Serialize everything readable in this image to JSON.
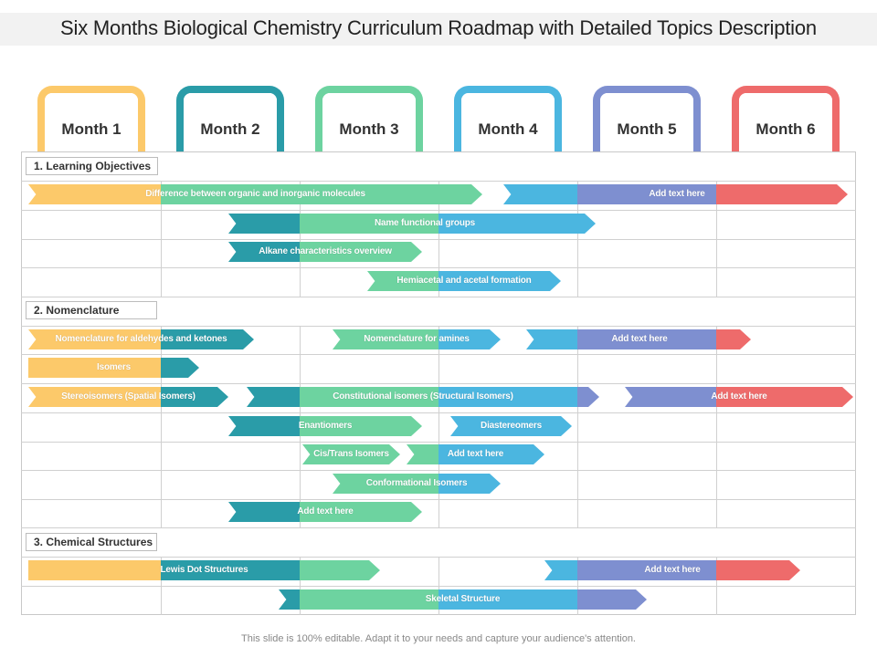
{
  "header": {
    "title": "Six Months Biological Chemistry Curriculum Roadmap with Detailed Topics Description"
  },
  "colors": {
    "yellow": "#FCC96A",
    "teal": "#2A9CA8",
    "green": "#6DD3A0",
    "blue": "#4BB6E0",
    "purple": "#7E8FD0",
    "red": "#EE6B6B"
  },
  "months": [
    {
      "label": "Month 1",
      "color": "#FCC96A"
    },
    {
      "label": "Month 2",
      "color": "#2A9CA8"
    },
    {
      "label": "Month 3",
      "color": "#6DD3A0"
    },
    {
      "label": "Month 4",
      "color": "#4BB6E0"
    },
    {
      "label": "Month 5",
      "color": "#7E8FD0"
    },
    {
      "label": "Month 6",
      "color": "#EE6B6B"
    }
  ],
  "sections": [
    {
      "label": "1. Learning Objectives"
    },
    {
      "label": "2. Nomenclature"
    },
    {
      "label": "3. Chemical Structures"
    }
  ],
  "bars": [
    {
      "text": "Difference between organic and inorganic molecules"
    },
    {
      "text": "Add text here"
    },
    {
      "text": "Name functional groups"
    },
    {
      "text": "Alkane characteristics overview"
    },
    {
      "text": "Hemiacetal and acetal formation"
    },
    {
      "text": "Nomenclature for aldehydes and ketones"
    },
    {
      "text": "Nomenclature for amines"
    },
    {
      "text": "Add text here"
    },
    {
      "text": "Isomers"
    },
    {
      "text": "Stereoisomers (Spatial Isomers)"
    },
    {
      "text": "Constitutional isomers (Structural Isomers)"
    },
    {
      "text": "Add text here"
    },
    {
      "text": "Enantiomers"
    },
    {
      "text": "Diastereomers"
    },
    {
      "text": "Cis/Trans Isomers"
    },
    {
      "text": "Add text here"
    },
    {
      "text": "Conformational Isomers"
    },
    {
      "text": "Add text here"
    },
    {
      "text": "Lewis Dot Structures"
    },
    {
      "text": "Add text here"
    },
    {
      "text": "Skeletal Structure"
    }
  ],
  "footer": {
    "text": "This slide is 100% editable. Adapt it to your needs and capture your audience's attention."
  }
}
